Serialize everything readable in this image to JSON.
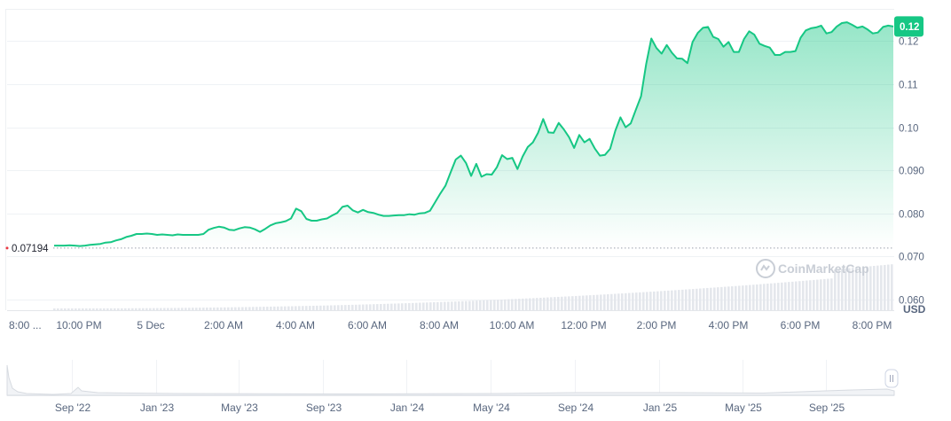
{
  "chart_data": {
    "type": "area",
    "unit": "USD",
    "x_tick_labels": [
      "8:00 ...",
      "10:00 PM",
      "5 Dec",
      "2:00 AM",
      "4:00 AM",
      "6:00 AM",
      "8:00 AM",
      "10:00 AM",
      "12:00 PM",
      "2:00 PM",
      "4:00 PM",
      "6:00 PM",
      "8:00 PM"
    ],
    "y_tick_labels": [
      "0.060",
      "0.070",
      "0.080",
      "0.090",
      "0.10",
      "0.11",
      "0.12"
    ],
    "ylim": [
      0.0575,
      0.1275
    ],
    "grid": true,
    "reference_price": 0.07194,
    "reference_label": "0.07194",
    "current_price_label": "0.12",
    "line_color": "#16c784",
    "series": [
      {
        "x_hours": [
          0.0,
          0.3,
          0.6,
          0.9,
          1.2,
          1.5,
          1.8,
          2.1,
          2.4,
          2.7,
          3.0,
          3.3,
          3.6,
          3.9,
          4.2,
          4.5,
          4.8,
          5.1,
          5.4,
          5.7,
          6.0,
          6.3,
          6.6,
          6.9,
          7.2,
          7.5,
          7.8,
          8.1,
          8.4,
          8.7,
          9.0,
          9.3,
          9.6,
          9.9,
          10.2,
          10.5,
          10.8,
          11.1,
          11.4,
          11.7,
          12.0,
          12.3,
          12.6,
          12.9,
          13.2,
          13.5,
          13.8,
          14.1,
          14.4,
          14.7,
          15.0,
          15.3,
          15.6,
          15.9,
          16.2,
          16.5,
          16.8,
          17.1,
          17.4,
          17.7,
          18.0,
          18.3,
          18.6,
          18.9,
          19.2,
          19.5,
          19.8,
          20.1,
          20.4,
          20.7,
          21.0,
          21.3,
          21.6,
          21.9,
          22.2,
          22.5,
          22.8,
          23.1,
          23.4,
          23.7,
          24.0,
          24.3,
          24.6,
          24.9,
          25.2,
          25.5,
          25.8,
          26.1,
          26.4,
          26.7,
          27.0,
          27.3,
          27.6,
          27.9,
          28.2,
          28.5,
          28.8,
          29.1,
          29.4,
          29.7,
          30.0,
          30.3,
          30.6,
          30.9,
          31.2,
          31.5,
          31.8,
          32.1,
          32.4,
          32.7,
          33.0,
          33.3,
          33.6,
          33.9,
          34.2,
          34.5,
          34.8,
          35.1,
          35.4,
          35.7,
          36.0,
          36.3,
          36.6,
          36.9,
          37.2,
          37.5,
          37.8,
          38.1,
          38.4,
          38.7,
          39.0,
          39.3,
          39.6,
          39.9,
          40.2,
          40.5,
          40.8,
          41.1,
          41.4,
          41.7,
          42.0,
          42.3,
          42.6,
          42.9,
          43.2,
          43.5,
          43.8,
          44.1,
          44.4,
          44.7,
          45.0,
          45.3,
          45.6,
          45.9,
          46.2,
          46.5,
          46.8,
          47.1,
          47.4,
          47.7,
          48.0,
          48.3,
          48.6,
          48.9
        ],
        "y": [
          0.0725,
          0.0725,
          0.0725,
          0.0726,
          0.0725,
          0.0724,
          0.0725,
          0.0727,
          0.0728,
          0.0729,
          0.0732,
          0.0733,
          0.0737,
          0.074,
          0.0745,
          0.0748,
          0.0752,
          0.0752,
          0.0753,
          0.0752,
          0.075,
          0.0751,
          0.075,
          0.0749,
          0.0751,
          0.075,
          0.075,
          0.075,
          0.075,
          0.0752,
          0.0762,
          0.0766,
          0.0769,
          0.0767,
          0.0762,
          0.0761,
          0.0765,
          0.0768,
          0.0767,
          0.0763,
          0.0757,
          0.0764,
          0.0772,
          0.0777,
          0.0779,
          0.0782,
          0.0788,
          0.0811,
          0.0805,
          0.0787,
          0.0783,
          0.0783,
          0.0786,
          0.0788,
          0.0795,
          0.0801,
          0.0815,
          0.0818,
          0.0807,
          0.0802,
          0.0808,
          0.0803,
          0.0801,
          0.0797,
          0.0794,
          0.0794,
          0.0795,
          0.0796,
          0.0796,
          0.0798,
          0.0797,
          0.08,
          0.0801,
          0.0806,
          0.0826,
          0.0846,
          0.0864,
          0.0895,
          0.0925,
          0.0934,
          0.0917,
          0.0887,
          0.0915,
          0.0885,
          0.0891,
          0.089,
          0.0907,
          0.0935,
          0.0926,
          0.0929,
          0.0903,
          0.0932,
          0.0954,
          0.0965,
          0.0987,
          0.1019,
          0.0988,
          0.0987,
          0.101,
          0.0995,
          0.0977,
          0.0952,
          0.0982,
          0.0965,
          0.0973,
          0.0951,
          0.0934,
          0.0936,
          0.095,
          0.0992,
          0.1023,
          0.1,
          0.1009,
          0.1041,
          0.1072,
          0.1147,
          0.1206,
          0.1184,
          0.1171,
          0.1191,
          0.1173,
          0.116,
          0.1159,
          0.1149,
          0.1198,
          0.1219,
          0.1231,
          0.1233,
          0.121,
          0.1205,
          0.1187,
          0.1198,
          0.1175,
          0.1175,
          0.1205,
          0.1223,
          0.1215,
          0.1194,
          0.1189,
          0.1185,
          0.1168,
          0.1168,
          0.1175,
          0.1175,
          0.1177,
          0.1208,
          0.1225,
          0.123,
          0.1232,
          0.1236,
          0.1218,
          0.1221,
          0.1234,
          0.1242,
          0.1244,
          0.1238,
          0.1231,
          0.1234,
          0.1227,
          0.1218,
          0.122,
          0.1233,
          0.1236,
          0.1234
        ]
      }
    ]
  },
  "navigator": {
    "labels": [
      "Sep '22",
      "Jan '23",
      "May '23",
      "Sep '23",
      "Jan '24",
      "May '24",
      "Sep '24",
      "Jan '25",
      "May '25",
      "Sep '25"
    ]
  },
  "watermark": "CoinMarketCap",
  "handle_icon": "pause-grip-icon"
}
